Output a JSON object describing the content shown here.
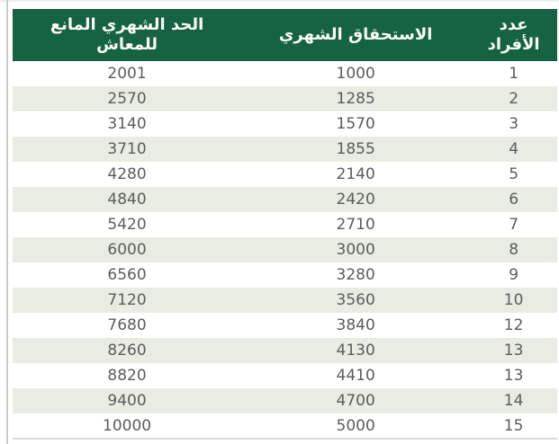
{
  "colors": {
    "header_bg": "#156343",
    "header_text": "#fbfbf5",
    "alt_row_bg": "#e9ece3",
    "cell_text": "#5b5c5e",
    "rule_gray": "#cccccc",
    "bottom_rule": "#d9d9d5",
    "top_rule": "#eeeeeb"
  },
  "table": {
    "columns": [
      {
        "key": "count",
        "label": "عدد\nالأفراد"
      },
      {
        "key": "entitlement",
        "label": "الاستحقاق الشهري"
      },
      {
        "key": "limit",
        "label": "الحد الشهري المانع للمعاش"
      }
    ],
    "rows": [
      {
        "count": "1",
        "entitlement": "1000",
        "limit": "2001"
      },
      {
        "count": "2",
        "entitlement": "1285",
        "limit": "2570"
      },
      {
        "count": "3",
        "entitlement": "1570",
        "limit": "3140"
      },
      {
        "count": "4",
        "entitlement": "1855",
        "limit": "3710"
      },
      {
        "count": "5",
        "entitlement": "2140",
        "limit": "4280"
      },
      {
        "count": "6",
        "entitlement": "2420",
        "limit": "4840"
      },
      {
        "count": "7",
        "entitlement": "2710",
        "limit": "5420"
      },
      {
        "count": "8",
        "entitlement": "3000",
        "limit": "6000"
      },
      {
        "count": "9",
        "entitlement": "3280",
        "limit": "6560"
      },
      {
        "count": "10",
        "entitlement": "3560",
        "limit": "7120"
      },
      {
        "count": "12",
        "entitlement": "3840",
        "limit": "7680"
      },
      {
        "count": "13",
        "entitlement": "4130",
        "limit": "8260"
      },
      {
        "count": "13",
        "entitlement": "4410",
        "limit": "8820"
      },
      {
        "count": "14",
        "entitlement": "4700",
        "limit": "9400"
      },
      {
        "count": "15",
        "entitlement": "5000",
        "limit": "10000"
      }
    ]
  },
  "chart_data": {
    "type": "table",
    "title": "",
    "columns": [
      "عدد الأفراد",
      "الاستحقاق الشهري",
      "الحد الشهري المانع للمعاش"
    ],
    "rows": [
      [
        1,
        1000,
        2001
      ],
      [
        2,
        1285,
        2570
      ],
      [
        3,
        1570,
        3140
      ],
      [
        4,
        1855,
        3710
      ],
      [
        5,
        2140,
        4280
      ],
      [
        6,
        2420,
        4840
      ],
      [
        7,
        2710,
        5420
      ],
      [
        8,
        3000,
        6000
      ],
      [
        9,
        3280,
        6560
      ],
      [
        10,
        3560,
        7120
      ],
      [
        12,
        3840,
        7680
      ],
      [
        13,
        4130,
        8260
      ],
      [
        13,
        4410,
        8820
      ],
      [
        14,
        4700,
        9400
      ],
      [
        15,
        5000,
        10000
      ]
    ],
    "layout_hints": {
      "direction": "rtl",
      "header_style": "dark-green-band",
      "row_striping": "alternating white / light greenish-gray"
    }
  }
}
